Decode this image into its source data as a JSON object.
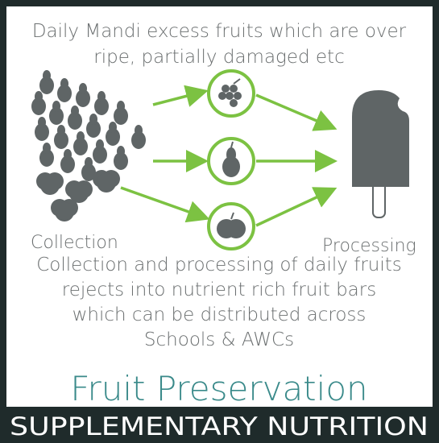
{
  "header": {
    "lines": [
      "Daily Mandi excess fruits which are over",
      "ripe, partially damaged etc"
    ]
  },
  "labels": {
    "left": "Collection",
    "right": "Processing"
  },
  "description": {
    "lines": [
      "Collection and processing of daily fruits",
      "rejects into nutrient rich fruit bars",
      "which can be distributed across",
      "Schools & AWCs"
    ]
  },
  "title": "Fruit Preservation",
  "footer": "SUPPLEMENTARY NUTRITION"
}
